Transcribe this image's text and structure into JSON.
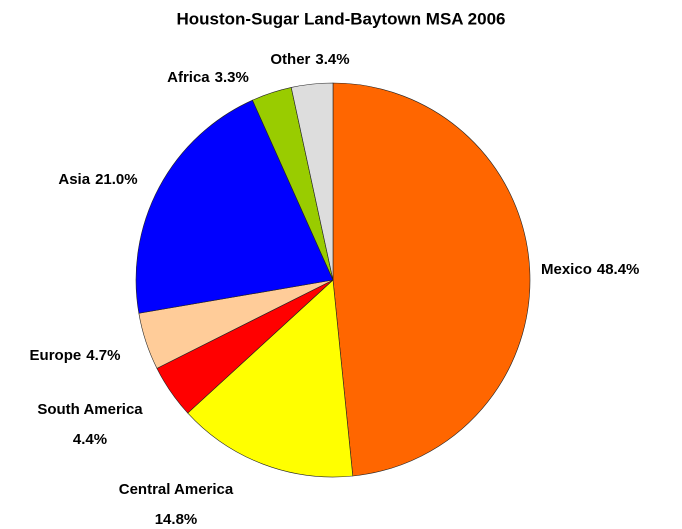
{
  "chart_data": {
    "type": "pie",
    "title": "Houston-Sugar Land-Baytown MSA 2006",
    "categories": [
      "Mexico",
      "Central America",
      "South America",
      "Europe",
      "Asia",
      "Africa",
      "Other"
    ],
    "values": [
      48.4,
      14.8,
      4.4,
      4.7,
      21.0,
      3.3,
      3.4
    ],
    "value_labels": [
      "48.4%",
      "14.8%",
      "4.4%",
      "4.7%",
      "21.0%",
      "3.3%",
      "3.4%"
    ],
    "colors": [
      "#ff6600",
      "#ffff00",
      "#ff0000",
      "#ffcc99",
      "#0000ff",
      "#99cc00",
      "#dddddd"
    ]
  }
}
